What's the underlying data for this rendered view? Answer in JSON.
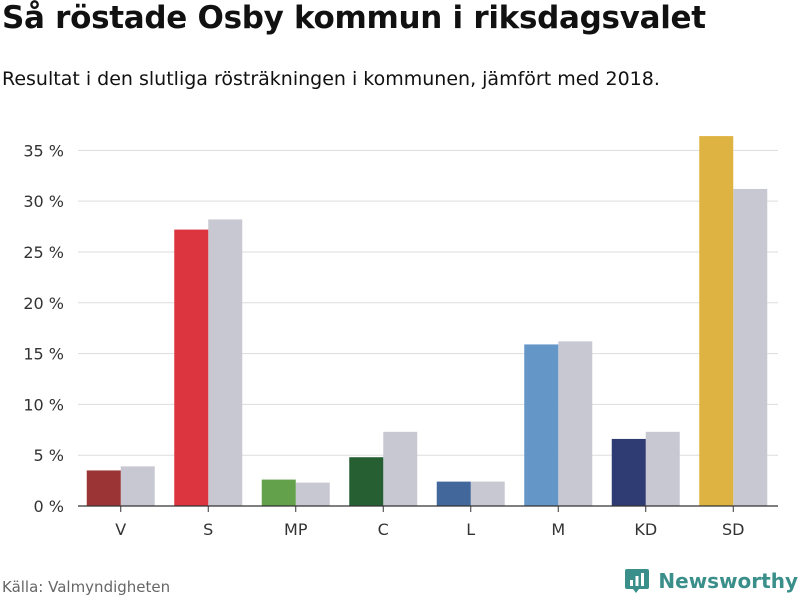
{
  "header": {
    "title": "Så röstade Osby kommun i riksdagsvalet",
    "subtitle": "Resultat i den slutliga rösträkningen i kommunen, jämfört med 2018."
  },
  "footer": {
    "source": "Källa: Valmyndigheten",
    "brand": "Newsworthy",
    "brand_icon": "bar-chart-logo-icon",
    "brand_color": "#3a8f8a"
  },
  "chart_data": {
    "type": "bar",
    "categories": [
      "V",
      "S",
      "MP",
      "C",
      "L",
      "M",
      "KD",
      "SD"
    ],
    "series": [
      {
        "values": [
          3.5,
          27.2,
          2.6,
          4.8,
          2.4,
          15.9,
          6.6,
          36.4
        ],
        "colors": [
          "#9b3535",
          "#dc3540",
          "#63a14a",
          "#265f32",
          "#42679a",
          "#6496c8",
          "#2f3c73",
          "#deb342"
        ]
      },
      {
        "values": [
          3.9,
          28.2,
          2.3,
          7.3,
          2.4,
          16.2,
          7.3,
          31.2
        ],
        "color": "#c8c8d2"
      }
    ],
    "yticks": [
      0,
      5,
      10,
      15,
      20,
      25,
      30,
      35
    ],
    "ytick_suffix": " %",
    "ylim": [
      0,
      37
    ],
    "grid": true,
    "legend": "none"
  }
}
